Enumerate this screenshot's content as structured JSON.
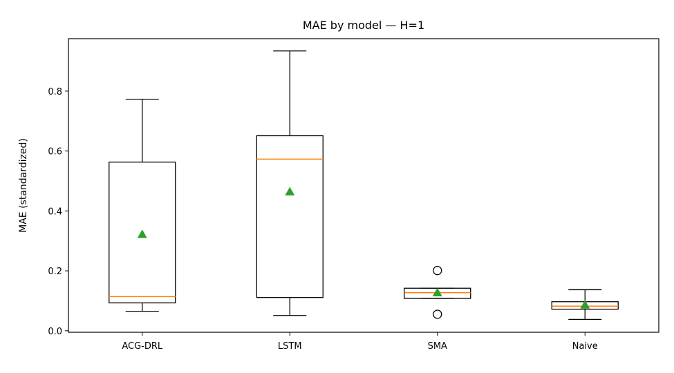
{
  "chart_data": {
    "type": "box",
    "title": "MAE by model — H=1",
    "xlabel": "",
    "ylabel": "MAE (standardized)",
    "ylim": [
      -0.005,
      0.975
    ],
    "yticks": [
      0.0,
      0.2,
      0.4,
      0.6,
      0.8
    ],
    "ytick_labels": [
      "0.0",
      "0.2",
      "0.4",
      "0.6",
      "0.8"
    ],
    "categories": [
      "ACG-DRL",
      "LSTM",
      "SMA",
      "Naive"
    ],
    "boxes": [
      {
        "category": "ACG-DRL",
        "whisker_low": 0.065,
        "q1": 0.093,
        "median": 0.114,
        "q3": 0.563,
        "whisker_high": 0.773,
        "mean": 0.322,
        "outliers": []
      },
      {
        "category": "LSTM",
        "whisker_low": 0.051,
        "q1": 0.111,
        "median": 0.573,
        "q3": 0.651,
        "whisker_high": 0.934,
        "mean": 0.464,
        "outliers": []
      },
      {
        "category": "SMA",
        "whisker_low": 0.108,
        "q1": 0.108,
        "median": 0.127,
        "q3": 0.142,
        "whisker_high": 0.142,
        "mean": 0.127,
        "outliers": [
          0.201,
          0.055
        ]
      },
      {
        "category": "Naive",
        "whisker_low": 0.038,
        "q1": 0.072,
        "median": 0.082,
        "q3": 0.097,
        "whisker_high": 0.137,
        "mean": 0.086,
        "outliers": []
      }
    ],
    "colors": {
      "box": "#000000",
      "median": "#ff7f0e",
      "mean": "#2ca02c",
      "frame": "#000000"
    },
    "legend": "none",
    "grid": false
  }
}
